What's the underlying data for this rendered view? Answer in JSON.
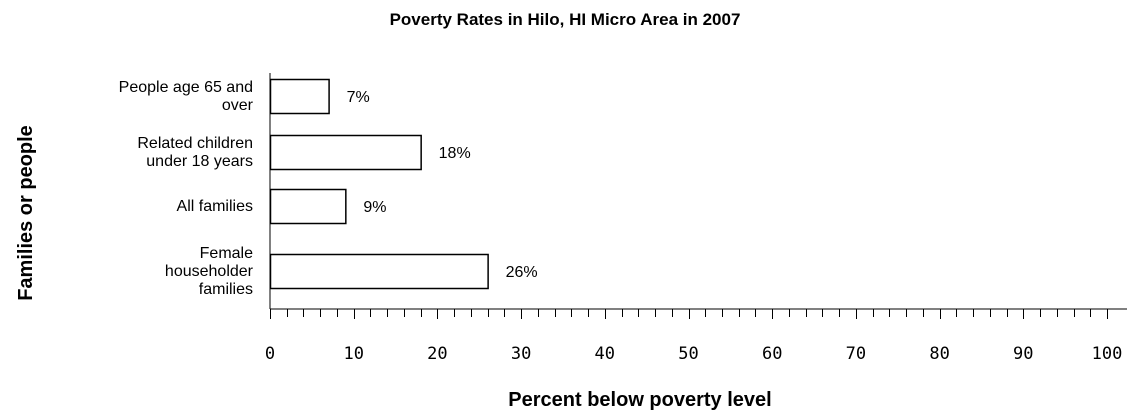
{
  "chart_data": {
    "type": "bar",
    "orientation": "horizontal",
    "title": "Poverty Rates in Hilo, HI Micro Area in 2007",
    "xlabel": "Percent below poverty level",
    "ylabel": "Families or people",
    "categories": [
      [
        "People age 65 and",
        "over"
      ],
      [
        "Related children",
        "under 18 years"
      ],
      [
        "All families"
      ],
      [
        "Female",
        "householder",
        "families"
      ]
    ],
    "values": [
      7,
      18,
      9,
      26
    ],
    "value_labels": [
      "7%",
      "18%",
      "9%",
      "26%"
    ],
    "xlim": [
      0,
      100
    ],
    "x_ticks": [
      "0",
      "10",
      "20",
      "30",
      "40",
      "50",
      "60",
      "70",
      "80",
      "90",
      "100"
    ],
    "x_minor_step": 2,
    "grid": false,
    "legend": "none",
    "colors": {
      "bar_fill": "#ffffff",
      "bar_stroke": "#000000",
      "axis": "#000000"
    }
  }
}
